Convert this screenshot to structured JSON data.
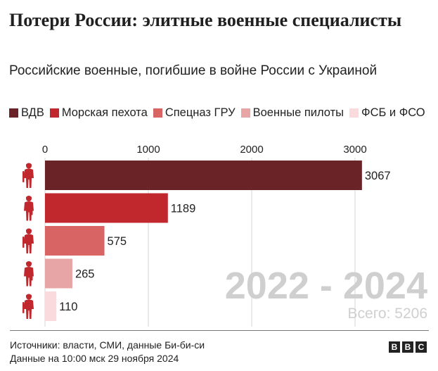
{
  "title": "Потери России: элитные военные специалисты",
  "subtitle": "Российские военные, погибшие в войне России с Украиной",
  "legend": [
    {
      "label": "ВДВ",
      "color": "#6a2428"
    },
    {
      "label": "Морская пехота",
      "color": "#c0282d"
    },
    {
      "label": "Спецназ ГРУ",
      "color": "#d96464"
    },
    {
      "label": "Военные пилоты",
      "color": "#e8a5a6"
    },
    {
      "label": "ФСБ и ФСО",
      "color": "#fbdadd"
    }
  ],
  "watermark": {
    "period": "2022 - 2024",
    "total": "Всего: 5206"
  },
  "footer": {
    "sources": "Источники: власти, СМИ, данные Би-би-си",
    "date": "Данные на 10:00 мск 29 ноября 2024"
  },
  "logo": [
    "B",
    "B",
    "C"
  ],
  "chart_data": {
    "type": "bar",
    "orientation": "horizontal",
    "categories": [
      "ВДВ",
      "Морская пехота",
      "Спецназ ГРУ",
      "Военные пилоты",
      "ФСБ и ФСО"
    ],
    "values": [
      3067,
      1189,
      575,
      265,
      110
    ],
    "colors": [
      "#6a2428",
      "#c0282d",
      "#d96464",
      "#e8a5a6",
      "#fbdadd"
    ],
    "xlim": [
      0,
      3000
    ],
    "xticks": [
      0,
      1000,
      2000,
      3000
    ],
    "grid": true,
    "axis_position": "top",
    "icon": "soldier-icon",
    "icon_color": "#c0282d"
  }
}
